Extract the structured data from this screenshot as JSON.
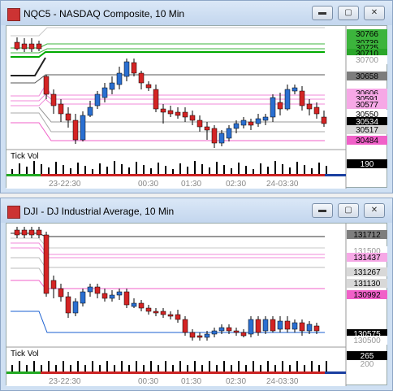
{
  "windows": [
    {
      "title": "NQC5 - NASDAQ Composite, 10 Min",
      "volume_label": "Tick Vol",
      "volume_value": "190",
      "time_labels": [
        "23-22:30",
        "00:30",
        "01:30",
        "02:30",
        "24-03:30"
      ],
      "price_labels": [
        {
          "text": "30766",
          "color": "#3cb43c",
          "fg": "#000"
        },
        {
          "text": "30739",
          "color": "#3cb43c",
          "fg": "#000"
        },
        {
          "text": "30725",
          "color": "#3cb43c",
          "fg": "#000"
        },
        {
          "text": "30710",
          "color": "#2aa62a",
          "fg": "#000"
        },
        {
          "text": "30700",
          "color": "#ffffff",
          "fg": "#999"
        },
        {
          "text": "30658",
          "color": "#7d7d7d",
          "fg": "#000"
        },
        {
          "text": "30606",
          "color": "#f6a8e6",
          "fg": "#000"
        },
        {
          "text": "30591",
          "color": "#f6a8e6",
          "fg": "#000"
        },
        {
          "text": "30577",
          "color": "#f6a8e6",
          "fg": "#000"
        },
        {
          "text": "30550",
          "color": "#ffffff",
          "fg": "#000"
        },
        {
          "text": "30534",
          "color": "#000000",
          "fg": "#fff"
        },
        {
          "text": "30517",
          "color": "#d8d8d8",
          "fg": "#000"
        },
        {
          "text": "30484",
          "color": "#f060c8",
          "fg": "#000"
        }
      ]
    },
    {
      "title": "DJI - DJ Industrial Average, 10 Min",
      "volume_label": "Tick Vol",
      "volume_value": "265",
      "volume_sub": "200",
      "time_labels": [
        "23-22:30",
        "00:30",
        "01:30",
        "02:30",
        "24-03:30"
      ],
      "price_labels": [
        {
          "text": "131712",
          "color": "#7d7d7d",
          "fg": "#000"
        },
        {
          "text": "131500",
          "color": "#ffffff",
          "fg": "#999"
        },
        {
          "text": "131437",
          "color": "#f6a8e6",
          "fg": "#000"
        },
        {
          "text": "131267",
          "color": "#d8d8d8",
          "fg": "#000"
        },
        {
          "text": "131130",
          "color": "#d8d8d8",
          "fg": "#000"
        },
        {
          "text": "130992",
          "color": "#f060c8",
          "fg": "#000"
        },
        {
          "text": "130575",
          "color": "#000000",
          "fg": "#fff"
        },
        {
          "text": "130500",
          "color": "#ffffff",
          "fg": "#999"
        }
      ]
    }
  ],
  "colors": {
    "up": "#2a6fd1",
    "down": "#d42424",
    "wick": "#000000"
  }
}
